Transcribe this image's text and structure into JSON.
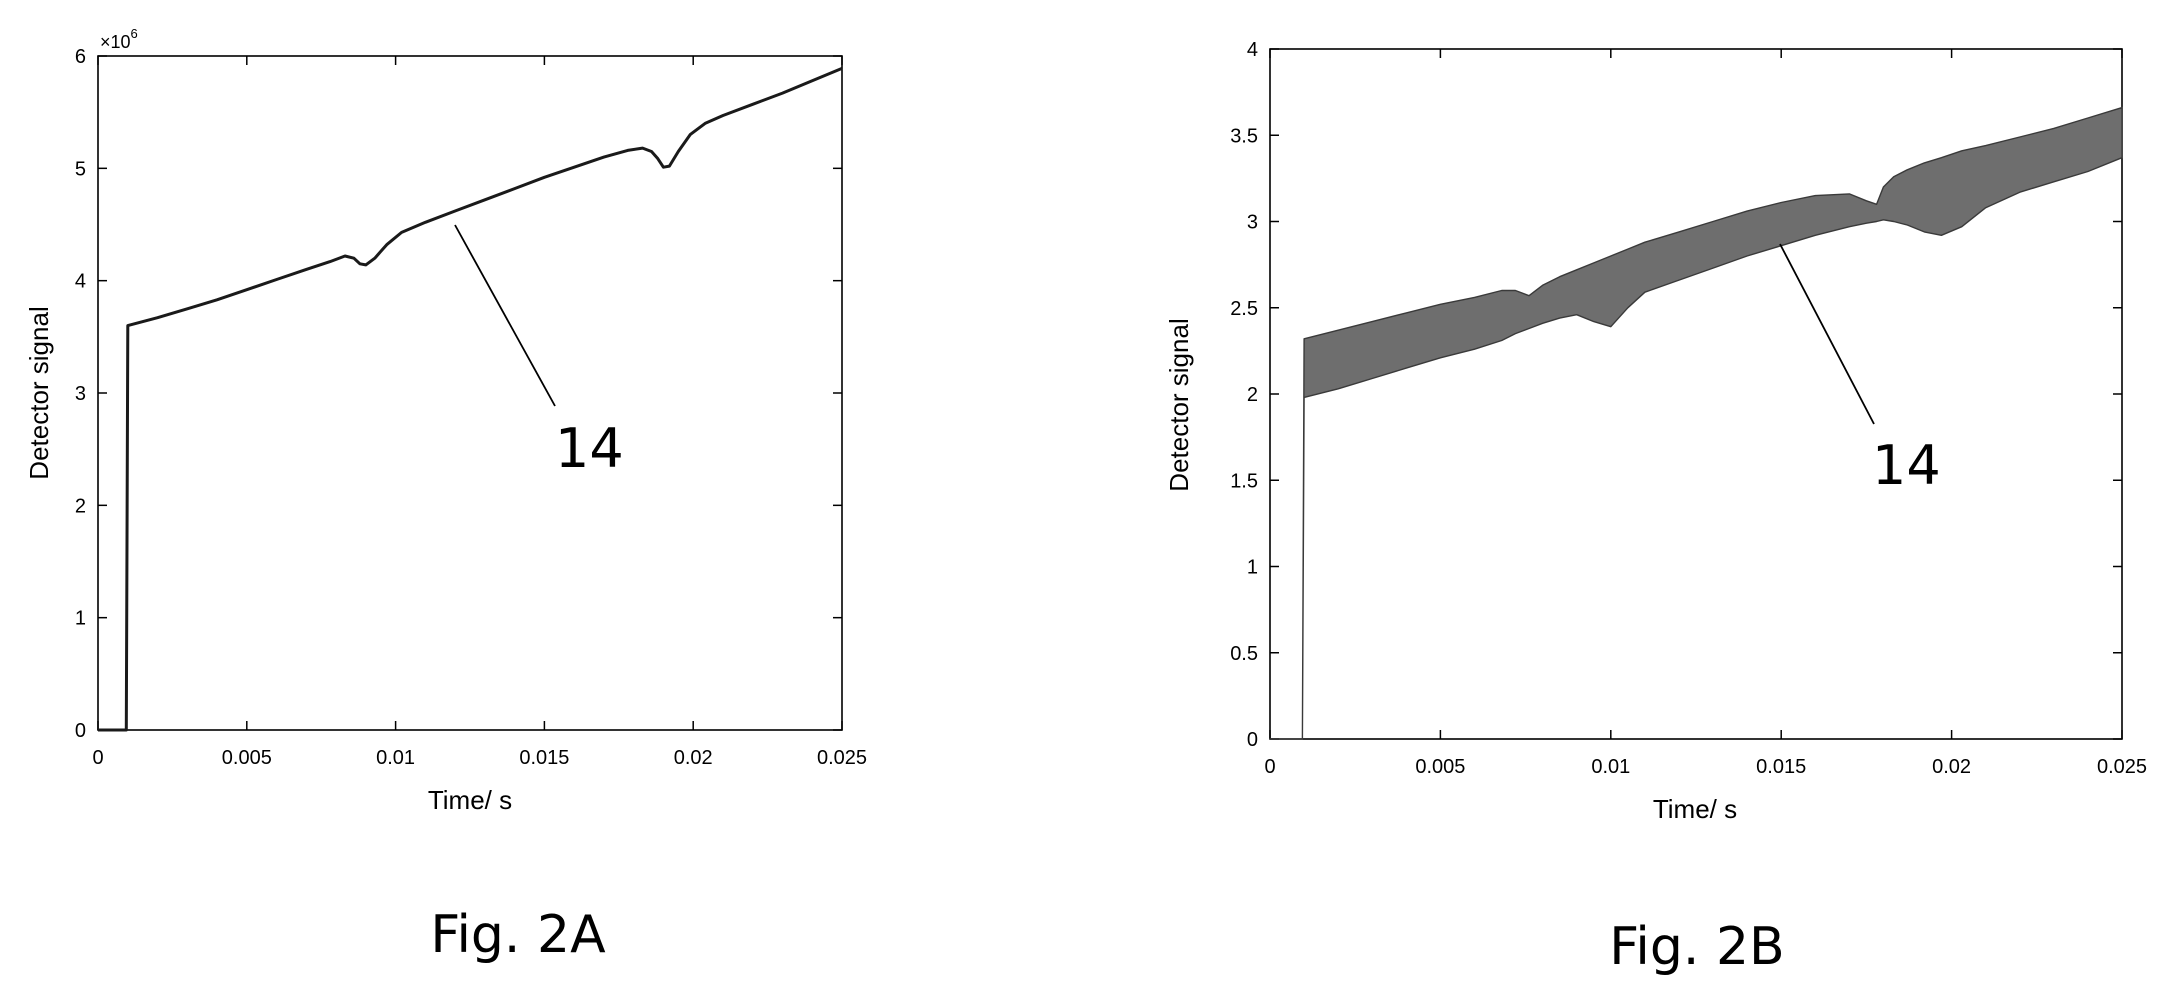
{
  "chart_data": [
    {
      "type": "line",
      "caption": "Fig. 2A",
      "xlabel": "Time/ s",
      "ylabel": "Detector signal",
      "y_exponent_label": "×10",
      "y_exponent_power": "6",
      "reference_numeral": "14",
      "xlim": [
        0,
        0.025
      ],
      "ylim": [
        0,
        6
      ],
      "x_ticks": [
        "0",
        "0.005",
        "0.01",
        "0.015",
        "0.02",
        "0.025"
      ],
      "y_ticks": [
        "0",
        "1",
        "2",
        "3",
        "4",
        "5",
        "6"
      ],
      "series": [
        {
          "x": [
            0,
            0.00095,
            0.001,
            0.002,
            0.003,
            0.004,
            0.005,
            0.006,
            0.007,
            0.0078,
            0.0083,
            0.0086,
            0.0088,
            0.009,
            0.0093,
            0.0097,
            0.0102,
            0.011,
            0.012,
            0.013,
            0.014,
            0.015,
            0.016,
            0.017,
            0.0178,
            0.0183,
            0.0186,
            0.0188,
            0.019,
            0.0192,
            0.0195,
            0.0199,
            0.0204,
            0.021,
            0.022,
            0.023,
            0.024,
            0.025
          ],
          "y": [
            0,
            0,
            3.6,
            3.67,
            3.75,
            3.83,
            3.92,
            4.01,
            4.1,
            4.17,
            4.22,
            4.2,
            4.15,
            4.14,
            4.2,
            4.32,
            4.43,
            4.52,
            4.62,
            4.72,
            4.82,
            4.92,
            5.01,
            5.1,
            5.16,
            5.18,
            5.15,
            5.09,
            5.01,
            5.02,
            5.15,
            5.3,
            5.4,
            5.47,
            5.57,
            5.67,
            5.78,
            5.89
          ]
        }
      ]
    },
    {
      "type": "area",
      "caption": "Fig. 2B",
      "xlabel": "Time/ s",
      "ylabel": "Detector signal",
      "reference_numeral": "14",
      "xlim": [
        0,
        0.025
      ],
      "ylim": [
        0,
        4
      ],
      "x_ticks": [
        "0",
        "0.005",
        "0.01",
        "0.015",
        "0.02",
        "0.025"
      ],
      "y_ticks": [
        "0",
        "0.5",
        "1",
        "1.5",
        "2",
        "2.5",
        "3",
        "3.5",
        "4"
      ],
      "band": {
        "x": [
          0,
          0.00095,
          0.001,
          0.002,
          0.003,
          0.004,
          0.005,
          0.006,
          0.0068,
          0.0072,
          0.0076,
          0.008,
          0.0085,
          0.009,
          0.0095,
          0.01,
          0.0105,
          0.011,
          0.012,
          0.013,
          0.014,
          0.015,
          0.016,
          0.017,
          0.0175,
          0.0178,
          0.018,
          0.0183,
          0.0187,
          0.0192,
          0.0197,
          0.0203,
          0.021,
          0.022,
          0.023,
          0.024,
          0.025
        ],
        "upper": [
          0,
          0,
          2.32,
          2.37,
          2.42,
          2.47,
          2.52,
          2.56,
          2.6,
          2.6,
          2.57,
          2.63,
          2.68,
          2.72,
          2.76,
          2.8,
          2.84,
          2.88,
          2.94,
          3.0,
          3.06,
          3.11,
          3.15,
          3.16,
          3.12,
          3.1,
          3.2,
          3.26,
          3.3,
          3.34,
          3.37,
          3.41,
          3.44,
          3.49,
          3.54,
          3.6,
          3.66
        ],
        "lower": [
          0,
          0,
          1.98,
          2.03,
          2.09,
          2.15,
          2.21,
          2.26,
          2.31,
          2.35,
          2.38,
          2.41,
          2.44,
          2.46,
          2.42,
          2.39,
          2.5,
          2.59,
          2.66,
          2.73,
          2.8,
          2.86,
          2.92,
          2.97,
          2.99,
          3.0,
          3.01,
          3.0,
          2.98,
          2.94,
          2.92,
          2.97,
          3.08,
          3.17,
          3.23,
          3.29,
          3.37
        ]
      }
    }
  ]
}
